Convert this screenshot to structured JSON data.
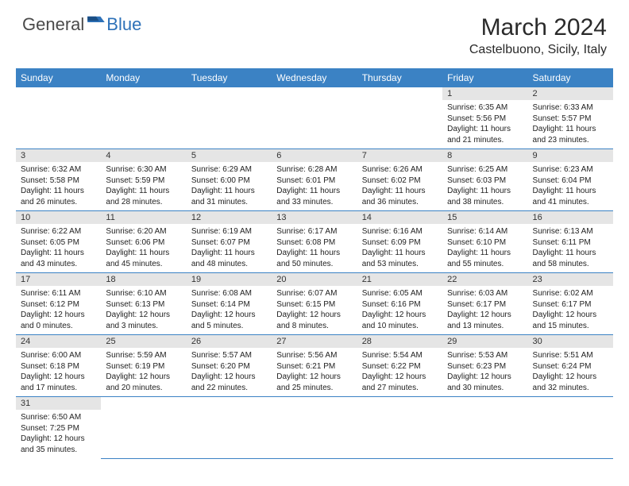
{
  "logo": {
    "text1": "General",
    "text2": "Blue"
  },
  "title": "March 2024",
  "location": "Castelbuono, Sicily, Italy",
  "colors": {
    "header_bg": "#3b82c4",
    "header_text": "#ffffff",
    "daynum_bg": "#e5e5e5",
    "cell_border": "#3b82c4",
    "logo_gray": "#4a4a4a",
    "logo_blue": "#2d71b8"
  },
  "weekdays": [
    "Sunday",
    "Monday",
    "Tuesday",
    "Wednesday",
    "Thursday",
    "Friday",
    "Saturday"
  ],
  "weeks": [
    [
      null,
      null,
      null,
      null,
      null,
      {
        "n": "1",
        "sr": "6:35 AM",
        "ss": "5:56 PM",
        "dl": "11 hours and 21 minutes."
      },
      {
        "n": "2",
        "sr": "6:33 AM",
        "ss": "5:57 PM",
        "dl": "11 hours and 23 minutes."
      }
    ],
    [
      {
        "n": "3",
        "sr": "6:32 AM",
        "ss": "5:58 PM",
        "dl": "11 hours and 26 minutes."
      },
      {
        "n": "4",
        "sr": "6:30 AM",
        "ss": "5:59 PM",
        "dl": "11 hours and 28 minutes."
      },
      {
        "n": "5",
        "sr": "6:29 AM",
        "ss": "6:00 PM",
        "dl": "11 hours and 31 minutes."
      },
      {
        "n": "6",
        "sr": "6:28 AM",
        "ss": "6:01 PM",
        "dl": "11 hours and 33 minutes."
      },
      {
        "n": "7",
        "sr": "6:26 AM",
        "ss": "6:02 PM",
        "dl": "11 hours and 36 minutes."
      },
      {
        "n": "8",
        "sr": "6:25 AM",
        "ss": "6:03 PM",
        "dl": "11 hours and 38 minutes."
      },
      {
        "n": "9",
        "sr": "6:23 AM",
        "ss": "6:04 PM",
        "dl": "11 hours and 41 minutes."
      }
    ],
    [
      {
        "n": "10",
        "sr": "6:22 AM",
        "ss": "6:05 PM",
        "dl": "11 hours and 43 minutes."
      },
      {
        "n": "11",
        "sr": "6:20 AM",
        "ss": "6:06 PM",
        "dl": "11 hours and 45 minutes."
      },
      {
        "n": "12",
        "sr": "6:19 AM",
        "ss": "6:07 PM",
        "dl": "11 hours and 48 minutes."
      },
      {
        "n": "13",
        "sr": "6:17 AM",
        "ss": "6:08 PM",
        "dl": "11 hours and 50 minutes."
      },
      {
        "n": "14",
        "sr": "6:16 AM",
        "ss": "6:09 PM",
        "dl": "11 hours and 53 minutes."
      },
      {
        "n": "15",
        "sr": "6:14 AM",
        "ss": "6:10 PM",
        "dl": "11 hours and 55 minutes."
      },
      {
        "n": "16",
        "sr": "6:13 AM",
        "ss": "6:11 PM",
        "dl": "11 hours and 58 minutes."
      }
    ],
    [
      {
        "n": "17",
        "sr": "6:11 AM",
        "ss": "6:12 PM",
        "dl": "12 hours and 0 minutes."
      },
      {
        "n": "18",
        "sr": "6:10 AM",
        "ss": "6:13 PM",
        "dl": "12 hours and 3 minutes."
      },
      {
        "n": "19",
        "sr": "6:08 AM",
        "ss": "6:14 PM",
        "dl": "12 hours and 5 minutes."
      },
      {
        "n": "20",
        "sr": "6:07 AM",
        "ss": "6:15 PM",
        "dl": "12 hours and 8 minutes."
      },
      {
        "n": "21",
        "sr": "6:05 AM",
        "ss": "6:16 PM",
        "dl": "12 hours and 10 minutes."
      },
      {
        "n": "22",
        "sr": "6:03 AM",
        "ss": "6:17 PM",
        "dl": "12 hours and 13 minutes."
      },
      {
        "n": "23",
        "sr": "6:02 AM",
        "ss": "6:17 PM",
        "dl": "12 hours and 15 minutes."
      }
    ],
    [
      {
        "n": "24",
        "sr": "6:00 AM",
        "ss": "6:18 PM",
        "dl": "12 hours and 17 minutes."
      },
      {
        "n": "25",
        "sr": "5:59 AM",
        "ss": "6:19 PM",
        "dl": "12 hours and 20 minutes."
      },
      {
        "n": "26",
        "sr": "5:57 AM",
        "ss": "6:20 PM",
        "dl": "12 hours and 22 minutes."
      },
      {
        "n": "27",
        "sr": "5:56 AM",
        "ss": "6:21 PM",
        "dl": "12 hours and 25 minutes."
      },
      {
        "n": "28",
        "sr": "5:54 AM",
        "ss": "6:22 PM",
        "dl": "12 hours and 27 minutes."
      },
      {
        "n": "29",
        "sr": "5:53 AM",
        "ss": "6:23 PM",
        "dl": "12 hours and 30 minutes."
      },
      {
        "n": "30",
        "sr": "5:51 AM",
        "ss": "6:24 PM",
        "dl": "12 hours and 32 minutes."
      }
    ],
    [
      {
        "n": "31",
        "sr": "6:50 AM",
        "ss": "7:25 PM",
        "dl": "12 hours and 35 minutes."
      },
      null,
      null,
      null,
      null,
      null,
      null
    ]
  ],
  "labels": {
    "sunrise": "Sunrise:",
    "sunset": "Sunset:",
    "daylight": "Daylight:"
  }
}
